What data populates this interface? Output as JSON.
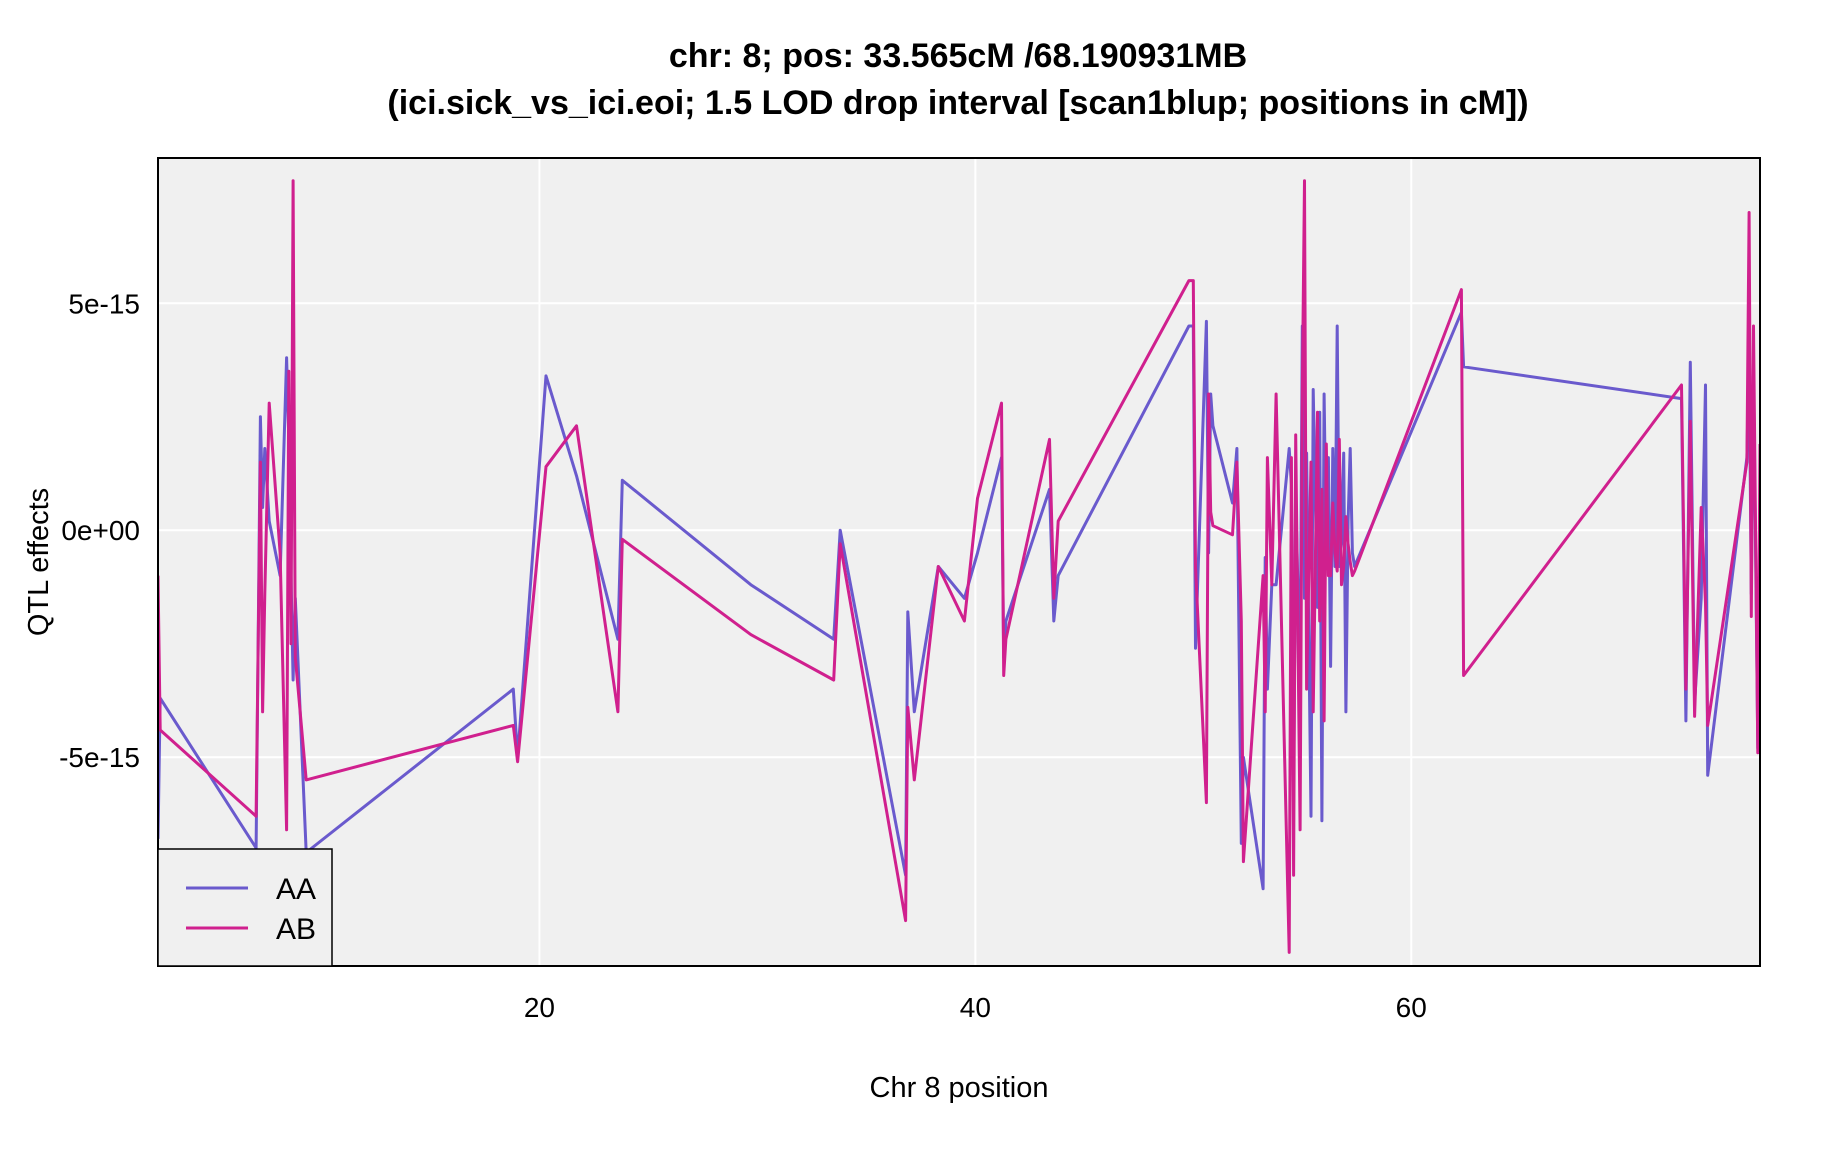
{
  "chart_data": {
    "type": "line",
    "title": "chr: 8; pos: 33.565cM /68.190931MB",
    "subtitle": "(ici.sick_vs_ici.eoi; 1.5 LOD drop interval [scan1blup; positions in cM])",
    "xlabel": "Chr 8 position",
    "ylabel": "QTL effects",
    "xlim": [
      2.5,
      76
    ],
    "ylim": [
      -9.6e-15,
      8.2e-15
    ],
    "x_ticks": [
      20,
      40,
      60
    ],
    "x_tick_labels": [
      "20",
      "40",
      "60"
    ],
    "y_ticks": [
      -5e-15,
      0,
      5e-15
    ],
    "y_tick_labels": [
      "-5e-15",
      "0e+00",
      "5e-15"
    ],
    "grid": true,
    "legend_position": "bottom-left",
    "background": "#f0f0f0",
    "series": [
      {
        "name": "AA",
        "color": "#6a5acd",
        "x": [
          2.5,
          2.6,
          7.0,
          7.2,
          7.3,
          7.4,
          7.6,
          8.1,
          8.4,
          8.5,
          8.6,
          8.7,
          8.8,
          9.3,
          18.8,
          19.0,
          20.3,
          21.7,
          23.6,
          23.8,
          29.7,
          33.5,
          33.8,
          36.8,
          36.9,
          37.2,
          38.3,
          39.5,
          40.1,
          41.2,
          41.3,
          41.4,
          43.4,
          43.6,
          43.8,
          49.8,
          50.0,
          50.1,
          50.6,
          50.7,
          50.8,
          50.9,
          51.8,
          52.0,
          52.2,
          52.3,
          53.2,
          53.3,
          53.4,
          53.6,
          53.8,
          54.4,
          54.5,
          54.6,
          54.7,
          54.9,
          55.0,
          55.1,
          55.2,
          55.4,
          55.5,
          55.7,
          55.8,
          55.9,
          56.0,
          56.1,
          56.2,
          56.3,
          56.4,
          56.5,
          56.6,
          56.7,
          56.8,
          56.9,
          57.0,
          57.1,
          57.2,
          57.3,
          57.4,
          62.3,
          62.4,
          72.4,
          72.6,
          72.8,
          73.0,
          73.3,
          73.5,
          73.6,
          75.4,
          75.5,
          75.6,
          75.7,
          75.9,
          76.0
        ],
        "y": [
          -6.8e-15,
          -3.7e-15,
          -7e-15,
          2.5e-15,
          5e-16,
          1.8e-15,
          2e-16,
          -1e-15,
          3.8e-15,
          2e-15,
          -1e-15,
          -3.3e-15,
          -1.5e-15,
          -7.1e-15,
          -3.5e-15,
          -5e-15,
          3.4e-15,
          1.2e-15,
          -2.4e-15,
          1.1e-15,
          -1.2e-15,
          -2.4e-15,
          0.0,
          -7.6e-15,
          -1.8e-15,
          -4e-15,
          -8e-16,
          -1.5e-15,
          -5e-16,
          1.6e-15,
          -2.8e-15,
          -2e-15,
          9e-16,
          -2e-15,
          -1e-15,
          4.5e-15,
          4.5e-15,
          -2.6e-15,
          4.6e-15,
          -5e-16,
          3e-15,
          2.3e-15,
          6e-16,
          1.8e-15,
          -6.9e-15,
          -5e-15,
          -7.9e-15,
          -6e-16,
          -3.5e-15,
          -1.2e-15,
          -1.2e-15,
          1.8e-15,
          1e-15,
          -6e-15,
          8e-16,
          -3.3e-15,
          4.5e-15,
          -1.5e-15,
          1.7e-15,
          -6.3e-15,
          3.1e-15,
          -1.7e-15,
          2.6e-15,
          -6.4e-15,
          3e-15,
          -5e-16,
          1.6e-15,
          -3e-15,
          1.8e-15,
          -8e-16,
          4.5e-15,
          -8e-16,
          -3e-16,
          1.7e-15,
          -4e-15,
          2e-16,
          1.8e-15,
          -5e-16,
          -8e-16,
          4.8e-15,
          3.6e-15,
          2.9e-15,
          -4.2e-15,
          3.7e-15,
          -3.8e-15,
          -1.5e-15,
          3.2e-15,
          -5.4e-15,
          1.6e-15,
          4e-15,
          -1.4e-15,
          3.6e-15,
          -4.8e-15,
          -1.3e-15
        ]
      },
      {
        "name": "AB",
        "color": "#d0208e",
        "x": [
          2.5,
          2.6,
          7.0,
          7.2,
          7.3,
          7.4,
          7.6,
          8.1,
          8.4,
          8.5,
          8.6,
          8.7,
          8.8,
          9.3,
          18.8,
          19.0,
          20.3,
          21.7,
          23.6,
          23.8,
          29.7,
          33.5,
          33.8,
          36.8,
          36.9,
          37.2,
          38.3,
          39.5,
          40.1,
          41.2,
          41.3,
          41.4,
          43.4,
          43.6,
          43.8,
          49.8,
          50.0,
          50.1,
          50.6,
          50.7,
          50.8,
          50.9,
          51.8,
          52.0,
          52.2,
          52.3,
          53.2,
          53.3,
          53.4,
          53.6,
          53.8,
          54.4,
          54.5,
          54.6,
          54.7,
          54.9,
          55.0,
          55.1,
          55.2,
          55.4,
          55.5,
          55.7,
          55.8,
          55.9,
          56.0,
          56.1,
          56.2,
          56.3,
          56.4,
          56.5,
          56.6,
          56.7,
          56.8,
          56.9,
          57.0,
          57.1,
          57.2,
          57.3,
          57.4,
          62.3,
          62.4,
          72.4,
          72.6,
          72.8,
          73.0,
          73.3,
          73.5,
          73.6,
          75.4,
          75.5,
          75.6,
          75.7,
          75.9,
          76.0
        ],
        "y": [
          -1e-15,
          -4.4e-15,
          -6.3e-15,
          1.5e-15,
          -4e-15,
          -1.4e-15,
          2.8e-15,
          -5e-16,
          -6.6e-15,
          3.5e-15,
          -2.5e-15,
          7.7e-15,
          -2.8e-15,
          -5.5e-15,
          -4.3e-15,
          -5.1e-15,
          1.4e-15,
          2.3e-15,
          -4e-15,
          -2e-16,
          -2.3e-15,
          -3.3e-15,
          -3e-16,
          -8.6e-15,
          -3.9e-15,
          -5.5e-15,
          -8e-16,
          -2e-15,
          7e-16,
          2.8e-15,
          -3.2e-15,
          -2.4e-15,
          2e-15,
          -1.5e-15,
          2e-16,
          5.5e-15,
          5.5e-15,
          -8e-16,
          -6e-15,
          3e-15,
          4e-16,
          1e-16,
          -1e-16,
          1.5e-15,
          -2e-15,
          -7.3e-15,
          -1e-15,
          -4e-15,
          1.6e-15,
          -1.2e-15,
          3e-15,
          -9.3e-15,
          1.6e-15,
          -7.6e-15,
          2.1e-15,
          -6.6e-15,
          3e-15,
          7.7e-15,
          -3.5e-15,
          1.5e-15,
          -4e-15,
          2.6e-15,
          -2e-15,
          9e-16,
          -4.2e-15,
          1.9e-15,
          -1e-15,
          -1e-15,
          6e-16,
          -5e-16,
          -9e-16,
          2e-15,
          -1.2e-15,
          -8e-16,
          3e-16,
          -3e-16,
          -7e-16,
          -1e-15,
          -9e-16,
          5.3e-15,
          -3.2e-15,
          3.2e-15,
          -3.5e-15,
          2.4e-15,
          -4.1e-15,
          5e-16,
          -1.6e-15,
          -4.3e-15,
          1.5e-15,
          7e-15,
          -1.9e-15,
          4.5e-15,
          -4.9e-15,
          1.9e-15
        ]
      }
    ]
  }
}
